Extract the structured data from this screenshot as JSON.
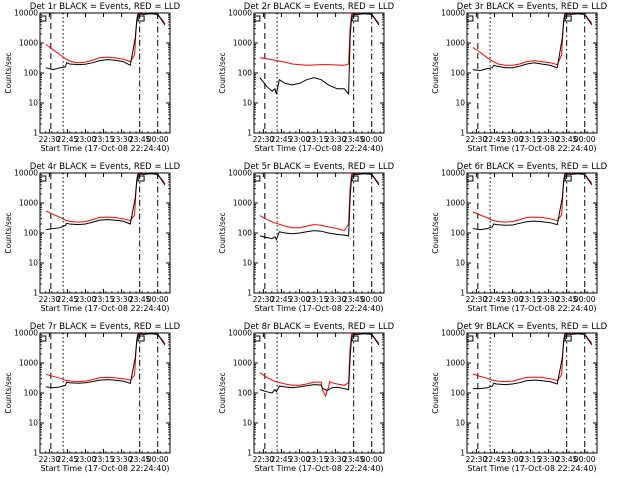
{
  "figure": {
    "x_tick_labels": [
      "22:30",
      "22:45",
      "23:00",
      "23:15",
      "23:30",
      "23:45",
      "00:00"
    ],
    "y_tick_labels": [
      "1",
      "10",
      "100",
      "1000",
      "10000"
    ],
    "x_label": "Start Time (17-Oct-08 22:24:40)",
    "y_label": "Counts/sec",
    "colors": {
      "events": "#000000",
      "lld": "#ff0000",
      "background": "#ffffff"
    }
  },
  "chart_data": [
    {
      "type": "line",
      "title": "Det 1r BLACK = Events, RED = LLD",
      "xlabel": "Start Time (17-Oct-08 22:24:40)",
      "ylabel": "Counts/sec",
      "xlim": [
        22.37,
        24.17
      ],
      "ylim": [
        1,
        10000
      ],
      "yscale": "log",
      "series": [
        {
          "name": "Events",
          "color": "#000000",
          "x": [
            22.45,
            22.55,
            22.65,
            22.72,
            22.74,
            22.78,
            22.9,
            23.0,
            23.1,
            23.2,
            23.3,
            23.4,
            23.52,
            23.62,
            23.69,
            23.71,
            23.73,
            23.75,
            23.8,
            23.9,
            24.0,
            24.1
          ],
          "values": [
            150,
            130,
            150,
            160,
            220,
            200,
            190,
            195,
            220,
            260,
            280,
            270,
            240,
            180,
            1500,
            6000,
            9000,
            9500,
            9000,
            9500,
            9000,
            4000
          ]
        },
        {
          "name": "LLD",
          "color": "#ff0000",
          "x": [
            22.45,
            22.55,
            22.65,
            22.72,
            22.8,
            22.9,
            23.0,
            23.1,
            23.2,
            23.3,
            23.4,
            23.52,
            23.62,
            23.68,
            23.7,
            23.72,
            23.75,
            23.8,
            23.9,
            24.0,
            24.1
          ],
          "values": [
            900,
            600,
            400,
            300,
            240,
            220,
            230,
            270,
            320,
            340,
            320,
            290,
            240,
            400,
            3000,
            9000,
            9500,
            9000,
            9800,
            9000,
            4500
          ]
        }
      ]
    },
    {
      "type": "line",
      "title": "Det 2r BLACK = Events, RED = LLD",
      "xlabel": "Start Time (17-Oct-08 22:24:40)",
      "ylabel": "Counts/sec",
      "xlim": [
        22.37,
        24.17
      ],
      "ylim": [
        1,
        10000
      ],
      "yscale": "log",
      "series": [
        {
          "name": "Events",
          "color": "#000000",
          "x": [
            22.45,
            22.55,
            22.62,
            22.66,
            22.68,
            22.72,
            22.8,
            22.9,
            23.0,
            23.1,
            23.2,
            23.3,
            23.4,
            23.52,
            23.62,
            23.68,
            23.7,
            23.72,
            23.75,
            23.8,
            23.9,
            24.0,
            24.1
          ],
          "values": [
            70,
            35,
            25,
            30,
            20,
            60,
            45,
            40,
            45,
            60,
            70,
            60,
            40,
            30,
            30,
            20,
            1500,
            7000,
            9000,
            9000,
            9500,
            9000,
            4000
          ]
        },
        {
          "name": "LLD",
          "color": "#ff0000",
          "x": [
            22.45,
            22.55,
            22.65,
            22.8,
            22.9,
            23.0,
            23.1,
            23.2,
            23.3,
            23.4,
            23.52,
            23.62,
            23.68,
            23.7,
            23.72,
            23.75,
            23.8,
            23.9,
            24.0,
            24.1
          ],
          "values": [
            320,
            300,
            270,
            230,
            200,
            190,
            180,
            185,
            190,
            190,
            185,
            180,
            200,
            3000,
            9000,
            9500,
            9000,
            9800,
            9000,
            4500
          ]
        }
      ]
    },
    {
      "type": "line",
      "title": "Det 3r BLACK = Events, RED = LLD",
      "xlabel": "Start Time (17-Oct-08 22:24:40)",
      "ylabel": "Counts/sec",
      "xlim": [
        22.37,
        24.17
      ],
      "ylim": [
        1,
        10000
      ],
      "yscale": "log",
      "series": [
        {
          "name": "Events",
          "color": "#000000",
          "x": [
            22.45,
            22.55,
            22.65,
            22.72,
            22.74,
            22.78,
            22.9,
            23.0,
            23.1,
            23.2,
            23.3,
            23.4,
            23.52,
            23.62,
            23.69,
            23.71,
            23.73,
            23.75,
            23.8,
            23.9,
            24.0,
            24.1
          ],
          "values": [
            130,
            120,
            140,
            150,
            180,
            170,
            150,
            150,
            170,
            200,
            220,
            200,
            180,
            150,
            1500,
            6000,
            9000,
            9500,
            9000,
            9500,
            9000,
            4000
          ]
        },
        {
          "name": "LLD",
          "color": "#ff0000",
          "x": [
            22.45,
            22.55,
            22.65,
            22.72,
            22.8,
            22.9,
            23.0,
            23.1,
            23.2,
            23.3,
            23.4,
            23.52,
            23.62,
            23.68,
            23.7,
            23.72,
            23.75,
            23.8,
            23.9,
            24.0,
            24.1
          ],
          "values": [
            700,
            500,
            320,
            250,
            200,
            180,
            180,
            200,
            240,
            260,
            240,
            220,
            190,
            400,
            3000,
            9000,
            9500,
            9000,
            9800,
            9000,
            4500
          ]
        }
      ]
    },
    {
      "type": "line",
      "title": "Det 4r BLACK = Events, RED = LLD",
      "xlabel": "Start Time (17-Oct-08 22:24:40)",
      "ylabel": "Counts/sec",
      "xlim": [
        22.37,
        24.17
      ],
      "ylim": [
        1,
        10000
      ],
      "yscale": "log",
      "series": [
        {
          "name": "Events",
          "color": "#000000",
          "x": [
            22.45,
            22.55,
            22.65,
            22.72,
            22.74,
            22.78,
            22.9,
            23.0,
            23.1,
            23.2,
            23.3,
            23.4,
            23.52,
            23.62,
            23.69,
            23.71,
            23.73,
            23.75,
            23.8,
            23.9,
            24.0,
            24.1
          ],
          "values": [
            130,
            140,
            150,
            180,
            210,
            200,
            190,
            200,
            230,
            270,
            280,
            270,
            250,
            200,
            1500,
            6000,
            9000,
            9500,
            9000,
            9500,
            9000,
            4000
          ]
        },
        {
          "name": "LLD",
          "color": "#ff0000",
          "x": [
            22.45,
            22.55,
            22.65,
            22.72,
            22.8,
            22.9,
            23.0,
            23.1,
            23.2,
            23.3,
            23.4,
            23.52,
            23.62,
            23.68,
            23.7,
            23.72,
            23.75,
            23.8,
            23.9,
            24.0,
            24.1
          ],
          "values": [
            550,
            420,
            330,
            270,
            240,
            230,
            240,
            280,
            330,
            340,
            330,
            300,
            260,
            400,
            3000,
            9000,
            9500,
            9000,
            9800,
            9000,
            4500
          ]
        }
      ]
    },
    {
      "type": "line",
      "title": "Det 5r BLACK = Events, RED = LLD",
      "xlabel": "Start Time (17-Oct-08 22:24:40)",
      "ylabel": "Counts/sec",
      "xlim": [
        22.37,
        24.17
      ],
      "ylim": [
        1,
        10000
      ],
      "yscale": "log",
      "series": [
        {
          "name": "Events",
          "color": "#000000",
          "x": [
            22.45,
            22.55,
            22.62,
            22.66,
            22.68,
            22.72,
            22.8,
            22.9,
            23.0,
            23.1,
            23.2,
            23.3,
            23.4,
            23.52,
            23.62,
            23.68,
            23.7,
            23.72,
            23.75,
            23.8,
            23.9,
            24.0,
            24.1
          ],
          "values": [
            80,
            70,
            65,
            75,
            60,
            110,
            100,
            95,
            100,
            110,
            120,
            115,
            100,
            90,
            85,
            80,
            1500,
            7000,
            9000,
            9000,
            9500,
            9000,
            4000
          ]
        },
        {
          "name": "LLD",
          "color": "#ff0000",
          "x": [
            22.45,
            22.55,
            22.65,
            22.8,
            22.9,
            23.0,
            23.1,
            23.2,
            23.3,
            23.4,
            23.52,
            23.62,
            23.68,
            23.7,
            23.72,
            23.75,
            23.8,
            23.9,
            24.0,
            24.1
          ],
          "values": [
            380,
            280,
            220,
            170,
            150,
            150,
            170,
            190,
            180,
            160,
            140,
            120,
            200,
            3000,
            9000,
            9500,
            9000,
            9800,
            9000,
            4500
          ]
        }
      ]
    },
    {
      "type": "line",
      "title": "Det 6r BLACK = Events, RED = LLD",
      "xlabel": "Start Time (17-Oct-08 22:24:40)",
      "ylabel": "Counts/sec",
      "xlim": [
        22.37,
        24.17
      ],
      "ylim": [
        1,
        10000
      ],
      "yscale": "log",
      "series": [
        {
          "name": "Events",
          "color": "#000000",
          "x": [
            22.45,
            22.55,
            22.65,
            22.72,
            22.74,
            22.78,
            22.9,
            23.0,
            23.1,
            23.2,
            23.3,
            23.4,
            23.52,
            23.62,
            23.69,
            23.71,
            23.73,
            23.75,
            23.8,
            23.9,
            24.0,
            24.1
          ],
          "values": [
            140,
            130,
            140,
            160,
            200,
            190,
            180,
            185,
            210,
            240,
            250,
            240,
            220,
            190,
            1500,
            6000,
            9000,
            9500,
            9000,
            9500,
            9000,
            4000
          ]
        },
        {
          "name": "LLD",
          "color": "#ff0000",
          "x": [
            22.45,
            22.55,
            22.65,
            22.72,
            22.8,
            22.9,
            23.0,
            23.1,
            23.2,
            23.3,
            23.4,
            23.52,
            23.62,
            23.68,
            23.7,
            23.72,
            23.75,
            23.8,
            23.9,
            24.0,
            24.1
          ],
          "values": [
            500,
            400,
            320,
            270,
            240,
            230,
            240,
            280,
            330,
            340,
            330,
            300,
            260,
            400,
            3000,
            9000,
            9500,
            9000,
            9800,
            9000,
            4500
          ]
        }
      ]
    },
    {
      "type": "line",
      "title": "Det 7r BLACK = Events, RED = LLD",
      "xlabel": "Start Time (17-Oct-08 22:24:40)",
      "ylabel": "Counts/sec",
      "xlim": [
        22.37,
        24.17
      ],
      "ylim": [
        1,
        10000
      ],
      "yscale": "log",
      "series": [
        {
          "name": "Events",
          "color": "#000000",
          "x": [
            22.45,
            22.55,
            22.65,
            22.72,
            22.74,
            22.78,
            22.9,
            23.0,
            23.1,
            23.2,
            23.3,
            23.4,
            23.52,
            23.62,
            23.69,
            23.71,
            23.73,
            23.75,
            23.8,
            23.9,
            24.0,
            24.1
          ],
          "values": [
            160,
            150,
            160,
            180,
            230,
            220,
            210,
            220,
            240,
            270,
            280,
            270,
            250,
            210,
            1500,
            6000,
            9000,
            9500,
            9000,
            9500,
            9000,
            4000
          ]
        },
        {
          "name": "LLD",
          "color": "#ff0000",
          "x": [
            22.45,
            22.55,
            22.65,
            22.72,
            22.8,
            22.9,
            23.0,
            23.1,
            23.2,
            23.3,
            23.4,
            23.52,
            23.62,
            23.68,
            23.7,
            23.72,
            23.75,
            23.8,
            23.9,
            24.0,
            24.1
          ],
          "values": [
            420,
            360,
            310,
            270,
            250,
            240,
            250,
            280,
            320,
            330,
            320,
            300,
            270,
            400,
            3000,
            9000,
            9500,
            9000,
            9800,
            9000,
            4500
          ]
        }
      ]
    },
    {
      "type": "line",
      "title": "Det 8r BLACK = Events, RED = LLD",
      "xlabel": "Start Time (17-Oct-08 22:24:40)",
      "ylabel": "Counts/sec",
      "xlim": [
        22.37,
        24.17
      ],
      "ylim": [
        1,
        10000
      ],
      "yscale": "log",
      "series": [
        {
          "name": "Events",
          "color": "#000000",
          "x": [
            22.45,
            22.55,
            22.62,
            22.66,
            22.68,
            22.72,
            22.8,
            22.9,
            23.0,
            23.1,
            23.2,
            23.3,
            23.32,
            23.36,
            23.38,
            23.45,
            23.52,
            23.62,
            23.68,
            23.7,
            23.72,
            23.75,
            23.8,
            23.9,
            24.0,
            24.1
          ],
          "values": [
            130,
            110,
            100,
            130,
            110,
            170,
            160,
            150,
            160,
            175,
            190,
            185,
            140,
            130,
            120,
            150,
            155,
            140,
            130,
            1500,
            7000,
            9000,
            9000,
            9500,
            9000,
            4000
          ]
        },
        {
          "name": "LLD",
          "color": "#ff0000",
          "x": [
            22.45,
            22.55,
            22.65,
            22.8,
            22.9,
            23.0,
            23.1,
            23.2,
            23.3,
            23.32,
            23.34,
            23.36,
            23.38,
            23.4,
            23.42,
            23.45,
            23.52,
            23.62,
            23.68,
            23.7,
            23.72,
            23.75,
            23.8,
            23.9,
            24.0,
            24.1
          ],
          "values": [
            480,
            330,
            250,
            200,
            180,
            180,
            200,
            230,
            230,
            120,
            100,
            80,
            110,
            150,
            240,
            220,
            200,
            180,
            220,
            3000,
            9000,
            9500,
            9000,
            9800,
            9000,
            4500
          ]
        }
      ]
    },
    {
      "type": "line",
      "title": "Det 9r BLACK = Events, RED = LLD",
      "xlabel": "Start Time (17-Oct-08 22:24:40)",
      "ylabel": "Counts/sec",
      "xlim": [
        22.37,
        24.17
      ],
      "ylim": [
        1,
        10000
      ],
      "yscale": "log",
      "series": [
        {
          "name": "Events",
          "color": "#000000",
          "x": [
            22.45,
            22.55,
            22.65,
            22.72,
            22.74,
            22.78,
            22.9,
            23.0,
            23.1,
            23.2,
            23.3,
            23.4,
            23.52,
            23.62,
            23.69,
            23.71,
            23.73,
            23.75,
            23.8,
            23.9,
            24.0,
            24.1
          ],
          "values": [
            140,
            140,
            150,
            170,
            210,
            200,
            190,
            200,
            220,
            260,
            270,
            260,
            240,
            200,
            1500,
            6000,
            9000,
            9500,
            9000,
            9500,
            9000,
            4000
          ]
        },
        {
          "name": "LLD",
          "color": "#ff0000",
          "x": [
            22.45,
            22.55,
            22.65,
            22.72,
            22.8,
            22.9,
            23.0,
            23.1,
            23.2,
            23.3,
            23.4,
            23.52,
            23.62,
            23.68,
            23.7,
            23.72,
            23.75,
            23.8,
            23.9,
            24.0,
            24.1
          ],
          "values": [
            430,
            360,
            310,
            270,
            250,
            240,
            250,
            290,
            330,
            340,
            330,
            300,
            260,
            400,
            3000,
            9000,
            9500,
            9000,
            9800,
            9000,
            4500
          ]
        }
      ]
    }
  ]
}
